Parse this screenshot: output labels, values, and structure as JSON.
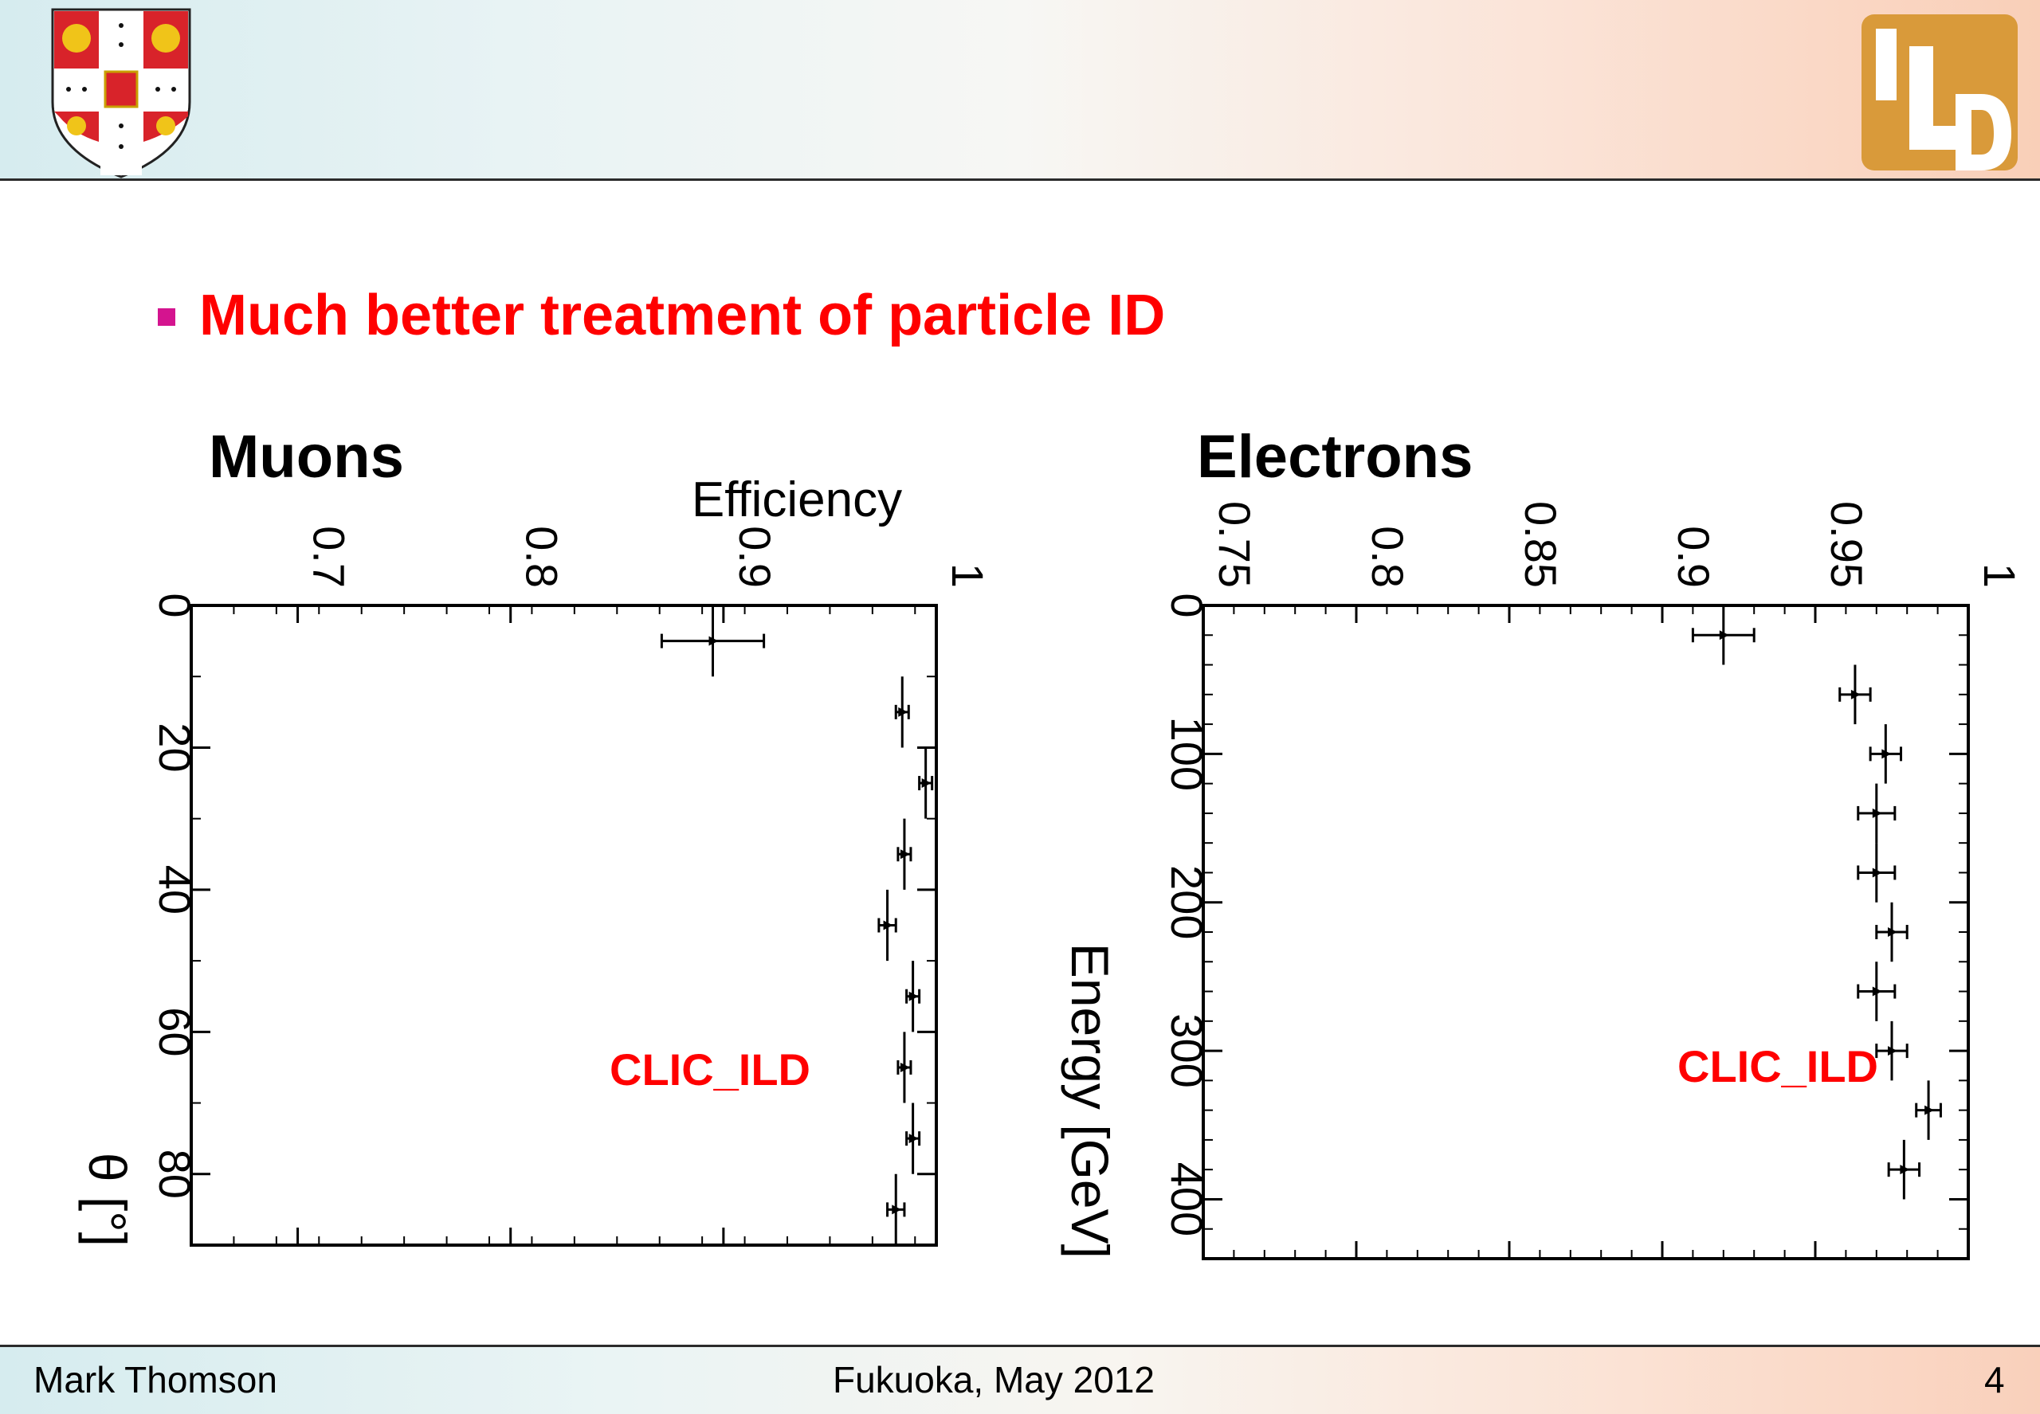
{
  "slide": {
    "bullet_text": "Much better treatment of particle ID",
    "footer_left": "Mark Thomson",
    "footer_center": "Fukuoka, May 2012",
    "footer_right": "4",
    "logo_crest": "university-crest-icon",
    "logo_ild": "ild-logo-icon",
    "accent_color": "#ff0000",
    "bullet_color": "#d4148f"
  },
  "chart_data": [
    {
      "type": "scatter",
      "title": "Muons",
      "xlabel": "θ [°]",
      "ylabel": "Efficiency",
      "annotation": "CLIC_ILD",
      "xlim": [
        0,
        90
      ],
      "ylim": [
        0.65,
        1.0
      ],
      "x_ticks": [
        0,
        20,
        40,
        60,
        80
      ],
      "y_ticks": [
        0.7,
        0.8,
        0.9,
        1
      ],
      "orientation": "rotated-90",
      "points": [
        {
          "x": 5,
          "y": 0.895,
          "xerr": 5,
          "yerr": 0.024
        },
        {
          "x": 15,
          "y": 0.984,
          "xerr": 5,
          "yerr": 0.003
        },
        {
          "x": 25,
          "y": 0.995,
          "xerr": 5,
          "yerr": 0.003
        },
        {
          "x": 35,
          "y": 0.985,
          "xerr": 5,
          "yerr": 0.003
        },
        {
          "x": 45,
          "y": 0.977,
          "xerr": 5,
          "yerr": 0.004
        },
        {
          "x": 55,
          "y": 0.989,
          "xerr": 5,
          "yerr": 0.003
        },
        {
          "x": 65,
          "y": 0.985,
          "xerr": 5,
          "yerr": 0.003
        },
        {
          "x": 75,
          "y": 0.989,
          "xerr": 5,
          "yerr": 0.003
        },
        {
          "x": 85,
          "y": 0.981,
          "xerr": 5,
          "yerr": 0.004
        }
      ]
    },
    {
      "type": "scatter",
      "title": "Electrons",
      "xlabel": "Energy [GeV]",
      "ylabel": "",
      "annotation": "CLIC_ILD",
      "xlim": [
        0,
        440
      ],
      "ylim": [
        0.75,
        1.0
      ],
      "x_ticks": [
        0,
        100,
        200,
        300,
        400
      ],
      "y_ticks": [
        0.75,
        0.8,
        0.85,
        0.9,
        0.95,
        1
      ],
      "orientation": "rotated-90",
      "points": [
        {
          "x": 20,
          "y": 0.92,
          "xerr": 20,
          "yerr": 0.01
        },
        {
          "x": 60,
          "y": 0.963,
          "xerr": 20,
          "yerr": 0.005
        },
        {
          "x": 100,
          "y": 0.973,
          "xerr": 20,
          "yerr": 0.005
        },
        {
          "x": 140,
          "y": 0.97,
          "xerr": 20,
          "yerr": 0.006
        },
        {
          "x": 180,
          "y": 0.97,
          "xerr": 20,
          "yerr": 0.006
        },
        {
          "x": 220,
          "y": 0.975,
          "xerr": 20,
          "yerr": 0.005
        },
        {
          "x": 260,
          "y": 0.97,
          "xerr": 20,
          "yerr": 0.006
        },
        {
          "x": 300,
          "y": 0.975,
          "xerr": 20,
          "yerr": 0.005
        },
        {
          "x": 340,
          "y": 0.987,
          "xerr": 20,
          "yerr": 0.004
        },
        {
          "x": 380,
          "y": 0.979,
          "xerr": 20,
          "yerr": 0.005
        }
      ]
    }
  ]
}
